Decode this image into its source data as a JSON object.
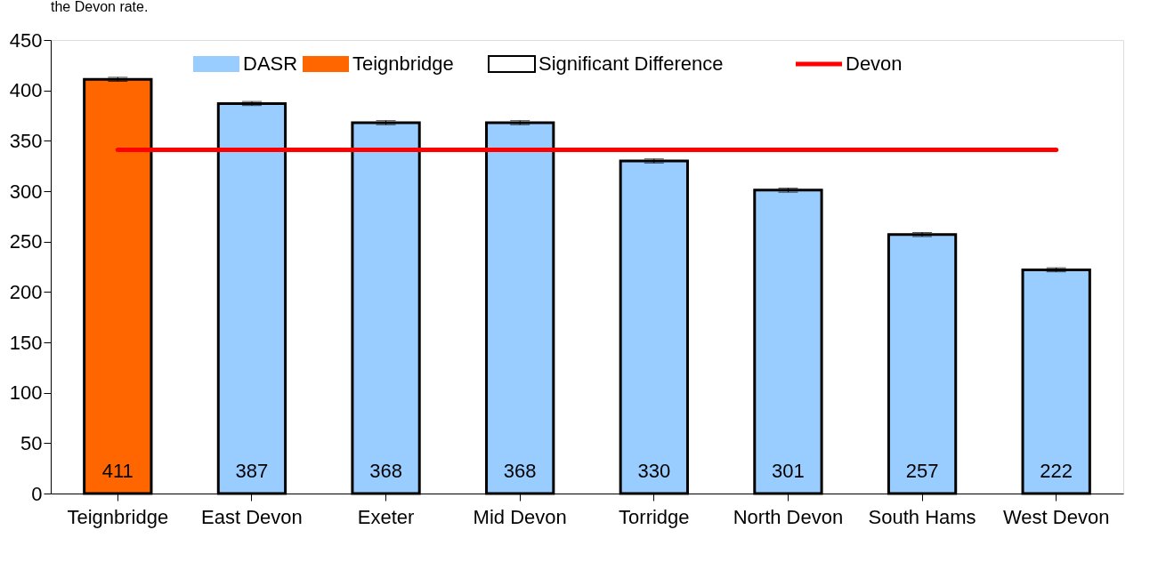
{
  "chart_data": {
    "type": "bar",
    "annotations": [
      "the Devon rate."
    ],
    "categories": [
      "Teignbridge",
      "East Devon",
      "Exeter",
      "Mid Devon",
      "Torridge",
      "North Devon",
      "South Hams",
      "West Devon"
    ],
    "series": [
      {
        "name": "DASR",
        "color": "#99ccff",
        "values": [
          null,
          387,
          368,
          368,
          330,
          301,
          257,
          222
        ],
        "errors": [
          null,
          2,
          2,
          2,
          2,
          2,
          2,
          2
        ],
        "value_labels": [
          null,
          "387",
          "368",
          "368",
          "330",
          "301",
          "257",
          "222"
        ]
      },
      {
        "name": "Teignbridge",
        "color": "#ff6600",
        "values": [
          411,
          null,
          null,
          null,
          null,
          null,
          null,
          null
        ],
        "errors": [
          2,
          null,
          null,
          null,
          null,
          null,
          null,
          null
        ],
        "value_labels": [
          "411",
          null,
          null,
          null,
          null,
          null,
          null,
          null
        ]
      },
      {
        "name": "Significant Difference",
        "color": "#ffffff",
        "values": [
          null,
          null,
          null,
          null,
          null,
          null,
          null,
          null
        ]
      },
      {
        "name": "Devon",
        "type": "line",
        "color": "#ff0000",
        "values": [
          341,
          341,
          341,
          341,
          341,
          341,
          341,
          341
        ]
      }
    ],
    "ylim": [
      0,
      450
    ],
    "yticks": [
      0,
      50,
      100,
      150,
      200,
      250,
      300,
      350,
      400,
      450
    ],
    "grid": false,
    "legend": "top"
  }
}
